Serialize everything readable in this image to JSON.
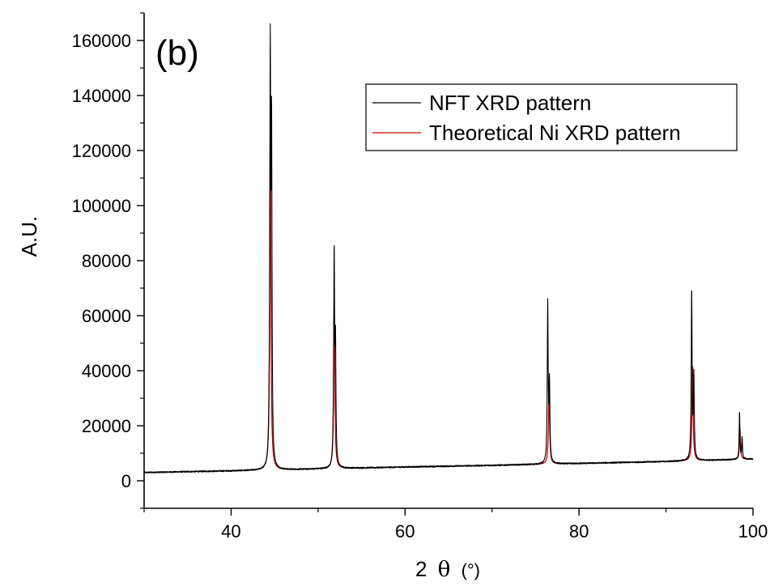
{
  "chart_data": {
    "type": "line",
    "panel_label": "(b)",
    "xlabel_prefix": "2",
    "xlabel_symbol": "θ",
    "xlabel_unit": "(°)",
    "ylabel": "A.U.",
    "xlim": [
      30,
      100
    ],
    "ylim": [
      -10000,
      170000
    ],
    "x_ticks": [
      40,
      60,
      80,
      100
    ],
    "y_ticks": [
      0,
      20000,
      40000,
      60000,
      80000,
      100000,
      120000,
      140000,
      160000
    ],
    "x_tick_labels": [
      "40",
      "60",
      "80",
      "100"
    ],
    "y_tick_labels": [
      "0",
      "20000",
      "40000",
      "60000",
      "80000",
      "100000",
      "120000",
      "140000",
      "160000"
    ],
    "legend_position": "top-right",
    "baseline": {
      "x": [
        30,
        45,
        50,
        60,
        70,
        80,
        90,
        100
      ],
      "y": [
        3000,
        3900,
        4300,
        5000,
        5600,
        6300,
        7000,
        7900
      ]
    },
    "series": [
      {
        "name": "NFT XRD pattern",
        "color": "#000000",
        "peaks": [
          {
            "x": 44.5,
            "y": 150000,
            "width": 0.12
          },
          {
            "x": 44.65,
            "y": 120000,
            "width": 0.12
          },
          {
            "x": 51.85,
            "y": 81000,
            "width": 0.12
          },
          {
            "x": 52.0,
            "y": 46000,
            "width": 0.12
          },
          {
            "x": 76.4,
            "y": 64000,
            "width": 0.12
          },
          {
            "x": 76.6,
            "y": 34000,
            "width": 0.12
          },
          {
            "x": 92.95,
            "y": 69000,
            "width": 0.12
          },
          {
            "x": 93.2,
            "y": 37000,
            "width": 0.12
          },
          {
            "x": 98.45,
            "y": 25000,
            "width": 0.1
          },
          {
            "x": 98.75,
            "y": 16000,
            "width": 0.1
          }
        ]
      },
      {
        "name": "Theoretical Ni XRD pattern",
        "color": "#cc0000",
        "peaks": [
          {
            "x": 44.5,
            "y": 132000,
            "width": 0.16
          },
          {
            "x": 51.85,
            "y": 66000,
            "width": 0.16
          },
          {
            "x": 76.55,
            "y": 34000,
            "width": 0.16
          },
          {
            "x": 93.05,
            "y": 42000,
            "width": 0.16
          },
          {
            "x": 98.5,
            "y": 19000,
            "width": 0.14
          }
        ]
      }
    ]
  }
}
